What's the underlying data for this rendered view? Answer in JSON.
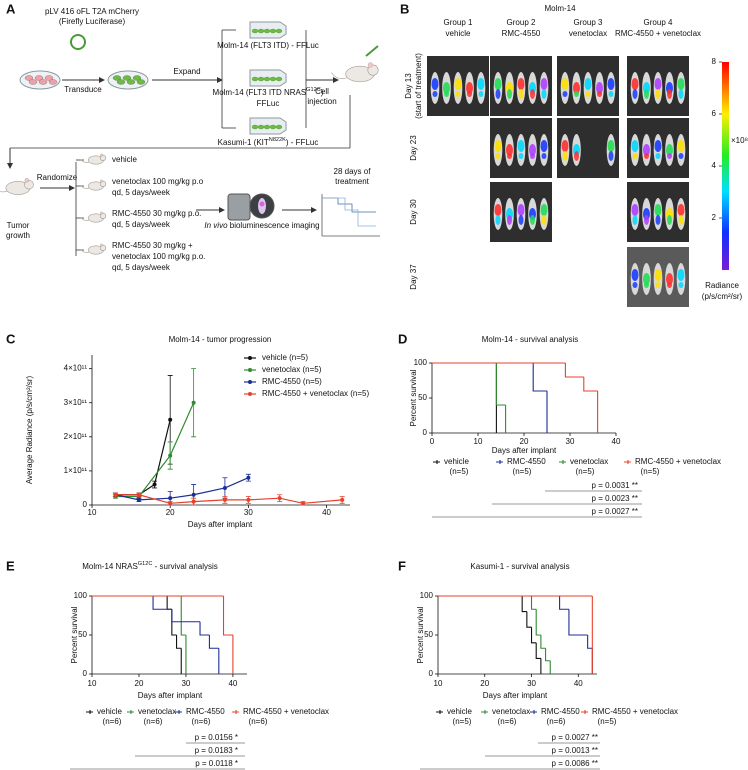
{
  "panel_labels": [
    "A",
    "B",
    "C",
    "D",
    "E",
    "F"
  ],
  "diagram": {
    "plasmid": [
      "pLV 416 oFL T2A mCherry",
      "(Firefly Luciferase)"
    ],
    "transduce": "Transduce",
    "expand": "Expand",
    "cell_lines": [
      {
        "text": [
          "Molm-14 (FLT3 ITD) - FFLuc"
        ]
      },
      {
        "text": [
          "Molm-14 (FLT3 ITD NRAS",
          "G12C",
          ")"
        ],
        "line2": "FFLuc"
      },
      {
        "text": [
          "Kasumi-1 (KIT",
          "N822K",
          ") - FFLuc"
        ]
      }
    ],
    "injection": [
      "Cell",
      "injection"
    ],
    "tumor": [
      "Tumor",
      "growth"
    ],
    "randomize": "Randomize",
    "groups": [
      [
        "vehicle"
      ],
      [
        "venetoclax 100 mg/kg p.o",
        "qd, 5 days/week"
      ],
      [
        "RMC-4550 30 mg/kg p.o.",
        "qd, 5 days/week"
      ],
      [
        "RMC-4550 30 mg/kg +",
        "venetoclax 100 mg/kg p.o.",
        "qd, 5 days/week"
      ]
    ],
    "imaging": [
      "In vivo",
      " bioluminescence imaging"
    ],
    "treatment": [
      "28 days of",
      "treatment"
    ]
  },
  "imaging_panel": {
    "title": "Molm-14",
    "groups": [
      [
        "Group 1",
        "vehicle"
      ],
      [
        "Group 2",
        "RMC-4550"
      ],
      [
        "Group 3",
        "venetoclax"
      ],
      [
        "Group 4",
        "RMC-4550 + venetoclax"
      ]
    ],
    "days": [
      [
        "Day 13",
        "(start of treatment)"
      ],
      [
        "Day 23"
      ],
      [
        "Day 30"
      ],
      [
        "Day 37"
      ]
    ],
    "colorbar": {
      "lim": [
        0,
        8
      ],
      "ticks": [
        2,
        4,
        6,
        8
      ],
      "multiplier": "×10⁸",
      "label": [
        "Radiance",
        "(p/s/cm²/sr)"
      ]
    }
  },
  "chart_data": [
    {
      "type": "line",
      "title": "Molm-14 - tumor progression",
      "xlabel": "Days after implant",
      "ylabel": "Average Radiance (p/s/cm²/sr)",
      "xlim": [
        10,
        43
      ],
      "xticks": [
        10,
        20,
        30,
        40
      ],
      "ylim": [
        0,
        440000000000
      ],
      "yticks": [
        0,
        {
          "value": 100000000000,
          "label": "1×10¹¹"
        },
        {
          "value": 200000000000,
          "label": "2×10¹¹"
        },
        {
          "value": 300000000000,
          "label": "3×10¹¹"
        },
        {
          "value": 400000000000,
          "label": "4×10¹¹"
        }
      ],
      "series": [
        {
          "name": "vehicle (n=5)",
          "color": "#111111",
          "x": [
            13,
            16,
            18,
            20
          ],
          "values": [
            30000000000,
            30000000000,
            60000000000,
            250000000000
          ],
          "errors": [
            5000000000,
            5000000000,
            10000000000,
            130000000000
          ]
        },
        {
          "name": "venetoclax (n=5)",
          "color": "#2e8b2e",
          "x": [
            13,
            16,
            20,
            23
          ],
          "values": [
            25000000000,
            25000000000,
            145000000000,
            300000000000
          ],
          "errors": [
            5000000000,
            5000000000,
            40000000000,
            100000000000
          ]
        },
        {
          "name": "RMC-4550 (n=5)",
          "color": "#1c2f93",
          "x": [
            13,
            16,
            20,
            23,
            27,
            30
          ],
          "values": [
            30000000000,
            15000000000,
            20000000000,
            30000000000,
            50000000000,
            80000000000
          ],
          "errors": [
            5000000000,
            5000000000,
            20000000000,
            30000000000,
            30000000000,
            10000000000
          ]
        },
        {
          "name": "RMC-4550 + venetoclax (n=5)",
          "color": "#e8402a",
          "x": [
            13,
            16,
            20,
            23,
            27,
            30,
            34,
            37,
            42
          ],
          "values": [
            30000000000,
            30000000000,
            5000000000,
            10000000000,
            15000000000,
            15000000000,
            20000000000,
            5000000000,
            15000000000
          ],
          "errors": [
            5000000000,
            5000000000,
            5000000000,
            10000000000,
            10000000000,
            10000000000,
            10000000000,
            5000000000,
            10000000000
          ]
        }
      ]
    },
    {
      "type": "step",
      "title": "Molm-14 - survival analysis",
      "xlabel": "Days after implant",
      "ylabel": "Percent survival",
      "xlim": [
        0,
        40
      ],
      "xticks": [
        0,
        10,
        20,
        30,
        40
      ],
      "ylim": [
        0,
        100
      ],
      "yticks": [
        0,
        50,
        100
      ],
      "series": [
        {
          "name": "vehicle",
          "n": "(n=5)",
          "color": "#111111",
          "x": [
            0,
            14
          ],
          "values": [
            100,
            0
          ]
        },
        {
          "name": "RMC-4550",
          "n": "(n=5)",
          "color": "#1c2f93",
          "x": [
            0,
            22,
            25
          ],
          "values": [
            100,
            60,
            0
          ]
        },
        {
          "name": "venetoclax",
          "n": "(n=5)",
          "color": "#2e8b2e",
          "x": [
            0,
            14,
            16
          ],
          "values": [
            100,
            40,
            0
          ]
        },
        {
          "name": "RMC-4550 + venetoclax",
          "n": "(n=5)",
          "color": "#e8402a",
          "x": [
            0,
            29,
            33,
            36
          ],
          "values": [
            100,
            80,
            60,
            0
          ]
        }
      ],
      "p_values": [
        "p = 0.0031 **",
        "p = 0.0023 **",
        "p = 0.0027 **"
      ]
    },
    {
      "type": "step",
      "title": [
        "Molm-14 NRAS",
        "G12C",
        " - survival analysis"
      ],
      "xlabel": "Days after implant",
      "ylabel": "Percent survival",
      "xlim": [
        10,
        43
      ],
      "xticks": [
        10,
        20,
        30,
        40
      ],
      "ylim": [
        0,
        100
      ],
      "yticks": [
        0,
        50,
        100
      ],
      "series": [
        {
          "name": "vehicle",
          "n": "(n=6)",
          "color": "#111111",
          "x": [
            10,
            26,
            27,
            28,
            29
          ],
          "values": [
            100,
            83,
            50,
            33,
            0
          ]
        },
        {
          "name": "venetoclax",
          "n": "(n=6)",
          "color": "#2e8b2e",
          "x": [
            10,
            29,
            30
          ],
          "values": [
            100,
            50,
            0
          ]
        },
        {
          "name": "RMC-4550",
          "n": "(n=6)",
          "color": "#1c2f93",
          "x": [
            10,
            23,
            27,
            33,
            35,
            37
          ],
          "values": [
            100,
            83,
            67,
            50,
            33,
            0
          ]
        },
        {
          "name": "RMC-4550 + venetoclax",
          "n": "(n=6)",
          "color": "#e8402a",
          "x": [
            10,
            38,
            40
          ],
          "values": [
            100,
            50,
            0
          ]
        }
      ],
      "p_values": [
        "p = 0.0156 *",
        "p = 0.0183 *",
        "p = 0.0118 *"
      ]
    },
    {
      "type": "step",
      "title": "Kasumi-1 - survival analysis",
      "xlabel": "Days after implant",
      "ylabel": "Percent survival",
      "xlim": [
        10,
        44
      ],
      "xticks": [
        10,
        20,
        30,
        40
      ],
      "ylim": [
        0,
        100
      ],
      "yticks": [
        0,
        50,
        100
      ],
      "series": [
        {
          "name": "vehicle",
          "n": "(n=5)",
          "color": "#111111",
          "x": [
            10,
            28,
            29,
            30,
            31,
            32
          ],
          "values": [
            100,
            80,
            60,
            40,
            20,
            0
          ]
        },
        {
          "name": "venetoclax",
          "n": "(n=6)",
          "color": "#2e8b2e",
          "x": [
            10,
            30,
            31,
            32,
            33,
            34
          ],
          "values": [
            100,
            83,
            50,
            33,
            17,
            0
          ]
        },
        {
          "name": "RMC-4550",
          "n": "(n=6)",
          "color": "#1c2f93",
          "x": [
            10,
            36,
            38,
            42,
            43
          ],
          "values": [
            100,
            83,
            50,
            33,
            0
          ]
        },
        {
          "name": "RMC-4550 + venetoclax",
          "n": "(n=5)",
          "color": "#e8402a",
          "x": [
            10,
            43
          ],
          "values": [
            100,
            0
          ]
        }
      ],
      "p_values": [
        "p = 0.0027 **",
        "p = 0.0013 **",
        "p = 0.0086 **"
      ]
    }
  ]
}
